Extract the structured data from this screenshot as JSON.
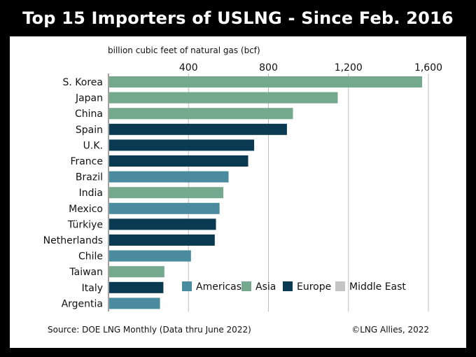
{
  "title": "Top 15 Importers of USLNG - Since Feb. 2016",
  "source": "Source: DOE LNG Monthly (Data thru June 2022)",
  "copyright": "©LNG Allies, 2022",
  "colors": {
    "Americas": "#4a8ba0",
    "Asia": "#74a98d",
    "Europe": "#0a3a52",
    "Middle East": "#c4c4c4"
  },
  "chart_data": {
    "type": "bar",
    "orientation": "horizontal",
    "title": "Top 15 Importers of USLNG - Since Feb. 2016",
    "xlabel": "billion cubic feet of natural gas (bcf)",
    "xlim": [
      0,
      1600
    ],
    "xticks": [
      400,
      800,
      1200,
      1600
    ],
    "xtick_labels": [
      "400",
      "800",
      "1,200",
      "1,600"
    ],
    "grid": "vertical gridlines",
    "legend_placement": "bottom-right inside plot",
    "legend": [
      "Americas",
      "Asia",
      "Europe",
      "Middle East"
    ],
    "categories": [
      "S. Korea",
      "Japan",
      "China",
      "Spain",
      "U.K.",
      "France",
      "Brazil",
      "India",
      "Mexico",
      "Türkiye",
      "Netherlands",
      "Chile",
      "Taiwan",
      "Italy",
      "Argentia"
    ],
    "values": [
      1565,
      1143,
      919,
      889,
      725,
      695,
      597,
      571,
      552,
      534,
      528,
      409,
      276,
      271,
      254
    ],
    "regions": [
      "Asia",
      "Asia",
      "Asia",
      "Europe",
      "Europe",
      "Europe",
      "Americas",
      "Asia",
      "Americas",
      "Europe",
      "Europe",
      "Americas",
      "Asia",
      "Europe",
      "Americas"
    ]
  }
}
